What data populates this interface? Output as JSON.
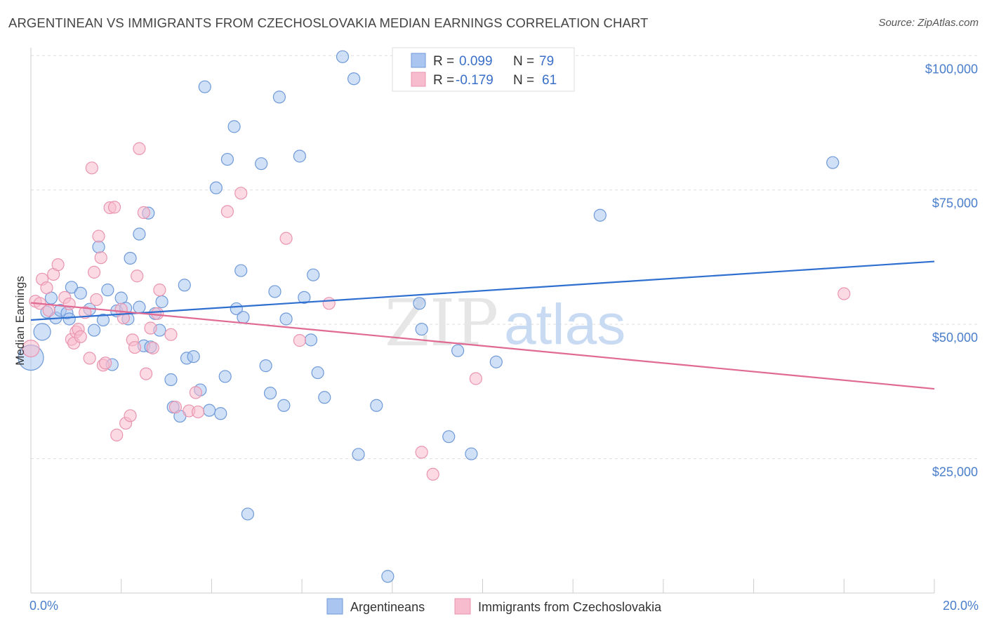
{
  "header": {
    "title": "ARGENTINEAN VS IMMIGRANTS FROM CZECHOSLOVAKIA MEDIAN EARNINGS CORRELATION CHART",
    "source": "Source: ZipAtlas.com"
  },
  "watermark": {
    "zip": "ZIP",
    "atlas": "atlas"
  },
  "legend_top": [
    {
      "r_label": "R =",
      "r_value": "0.099",
      "n_label": "N =",
      "n_value": "79"
    },
    {
      "r_label": "R =",
      "r_value": "-0.179",
      "n_label": "N =",
      "n_value": "61"
    }
  ],
  "legend_bottom": [
    "Argentineans",
    "Immigrants from Czechoslovakia"
  ],
  "colors": {
    "blue_fill": "#aac6f0",
    "blue_stroke": "#6f9ad8",
    "blue_line": "#2f6fd0",
    "pink_fill": "#f7bccd",
    "pink_stroke": "#e995b0",
    "pink_line": "#e06a94",
    "grid": "#dddddd",
    "tick_text": "#4a7ecb"
  },
  "chart_data": {
    "type": "scatter",
    "title": "ARGENTINEAN VS IMMIGRANTS FROM CZECHOSLOVAKIA MEDIAN EARNINGS CORRELATION CHART",
    "xlabel": "",
    "ylabel": "Median Earnings",
    "xlim": [
      0,
      20
    ],
    "ylim": [
      0,
      104000
    ],
    "x_tick_labels": [
      {
        "value": 0,
        "label": "0.0%"
      },
      {
        "value": 20,
        "label": "20.0%"
      }
    ],
    "y_tick_labels": [
      {
        "value": 25000,
        "label": "$25,000"
      },
      {
        "value": 50000,
        "label": "$50,000"
      },
      {
        "value": 75000,
        "label": "$75,000"
      },
      {
        "value": 100000,
        "label": "$100,000"
      }
    ],
    "grid": true,
    "series": [
      {
        "name": "Argentineans",
        "color": "#aac6f0",
        "trend": {
          "x": [
            0,
            20
          ],
          "y": [
            50800,
            61700
          ]
        },
        "points": [
          [
            0.0,
            43800,
            3
          ],
          [
            0.25,
            48600,
            2
          ],
          [
            0.35,
            52300,
            1
          ],
          [
            0.45,
            54900,
            1
          ],
          [
            0.55,
            51200,
            1
          ],
          [
            0.65,
            52600,
            1
          ],
          [
            0.8,
            52100,
            1
          ],
          [
            0.85,
            51000,
            1
          ],
          [
            0.9,
            56900,
            1
          ],
          [
            1.1,
            55800,
            1
          ],
          [
            1.3,
            52800,
            1
          ],
          [
            1.4,
            48900,
            1
          ],
          [
            1.5,
            64400,
            1
          ],
          [
            1.6,
            50800,
            1
          ],
          [
            1.7,
            56400,
            1
          ],
          [
            1.8,
            42500,
            1
          ],
          [
            1.9,
            52500,
            1
          ],
          [
            2.0,
            54900,
            1
          ],
          [
            2.1,
            53000,
            1
          ],
          [
            2.15,
            51000,
            1
          ],
          [
            2.2,
            62300,
            1
          ],
          [
            2.4,
            53200,
            1
          ],
          [
            2.4,
            66800,
            1
          ],
          [
            2.5,
            46000,
            1
          ],
          [
            2.6,
            70700,
            1
          ],
          [
            2.65,
            45800,
            1
          ],
          [
            2.75,
            52000,
            1
          ],
          [
            2.85,
            48900,
            1
          ],
          [
            2.9,
            54200,
            1
          ],
          [
            3.1,
            39700,
            1
          ],
          [
            3.15,
            34600,
            1
          ],
          [
            3.3,
            32900,
            1
          ],
          [
            3.4,
            57300,
            1
          ],
          [
            3.45,
            43700,
            1
          ],
          [
            3.6,
            44000,
            1
          ],
          [
            3.75,
            37800,
            1
          ],
          [
            3.85,
            94200,
            1
          ],
          [
            3.95,
            34000,
            1
          ],
          [
            4.1,
            75400,
            1
          ],
          [
            4.2,
            33400,
            1
          ],
          [
            4.3,
            40300,
            1
          ],
          [
            4.35,
            80700,
            1
          ],
          [
            4.5,
            86800,
            1
          ],
          [
            4.55,
            52900,
            1
          ],
          [
            4.65,
            60000,
            1
          ],
          [
            4.7,
            51300,
            1
          ],
          [
            4.8,
            14700,
            1
          ],
          [
            5.1,
            79900,
            1
          ],
          [
            5.2,
            42300,
            1
          ],
          [
            5.3,
            37200,
            1
          ],
          [
            5.4,
            56100,
            1
          ],
          [
            5.5,
            92300,
            1
          ],
          [
            5.6,
            34900,
            1
          ],
          [
            5.65,
            51000,
            1
          ],
          [
            5.95,
            81300,
            1
          ],
          [
            6.05,
            55000,
            1
          ],
          [
            6.2,
            47100,
            1
          ],
          [
            6.25,
            59200,
            1
          ],
          [
            6.35,
            41000,
            1
          ],
          [
            6.5,
            36400,
            1
          ],
          [
            6.9,
            99800,
            1
          ],
          [
            7.15,
            95700,
            1
          ],
          [
            7.25,
            25800,
            1
          ],
          [
            7.65,
            34900,
            1
          ],
          [
            7.9,
            3100,
            1
          ],
          [
            8.6,
            53900,
            1
          ],
          [
            8.65,
            49100,
            1
          ],
          [
            8.8,
            95400,
            1
          ],
          [
            9.25,
            29100,
            1
          ],
          [
            9.45,
            45100,
            1
          ],
          [
            9.75,
            25900,
            1
          ],
          [
            10.3,
            43000,
            1
          ],
          [
            12.6,
            70300,
            1
          ],
          [
            17.75,
            80100,
            1
          ]
        ]
      },
      {
        "name": "Immigrants from Czechoslovakia",
        "color": "#f7bccd",
        "trend": {
          "x": [
            0,
            20
          ],
          "y": [
            54000,
            38000
          ]
        },
        "points": [
          [
            0.0,
            45500,
            2
          ],
          [
            0.1,
            54300,
            1
          ],
          [
            0.2,
            53900,
            1
          ],
          [
            0.25,
            58400,
            1
          ],
          [
            0.35,
            56800,
            1
          ],
          [
            0.4,
            52600,
            1
          ],
          [
            0.5,
            59300,
            1
          ],
          [
            0.6,
            61100,
            1
          ],
          [
            0.75,
            55000,
            1
          ],
          [
            0.85,
            53800,
            1
          ],
          [
            0.9,
            47200,
            1
          ],
          [
            0.95,
            46500,
            1
          ],
          [
            1.0,
            48600,
            1
          ],
          [
            1.05,
            49100,
            1
          ],
          [
            1.1,
            47700,
            1
          ],
          [
            1.2,
            52200,
            1
          ],
          [
            1.3,
            43700,
            1
          ],
          [
            1.35,
            79100,
            1
          ],
          [
            1.4,
            59700,
            1
          ],
          [
            1.45,
            54600,
            1
          ],
          [
            1.5,
            66400,
            1
          ],
          [
            1.55,
            62400,
            1
          ],
          [
            1.6,
            42400,
            1
          ],
          [
            1.65,
            42800,
            1
          ],
          [
            1.75,
            71700,
            1
          ],
          [
            1.85,
            71800,
            1
          ],
          [
            1.9,
            29400,
            1
          ],
          [
            2.0,
            52800,
            1
          ],
          [
            2.05,
            51200,
            1
          ],
          [
            2.1,
            31600,
            1
          ],
          [
            2.2,
            33000,
            1
          ],
          [
            2.25,
            47100,
            1
          ],
          [
            2.3,
            45700,
            1
          ],
          [
            2.35,
            59000,
            1
          ],
          [
            2.4,
            82700,
            1
          ],
          [
            2.5,
            70800,
            1
          ],
          [
            2.55,
            40800,
            1
          ],
          [
            2.65,
            49300,
            1
          ],
          [
            2.7,
            45600,
            1
          ],
          [
            2.8,
            52000,
            1
          ],
          [
            2.85,
            56400,
            1
          ],
          [
            3.1,
            48100,
            1
          ],
          [
            3.2,
            34600,
            1
          ],
          [
            3.5,
            33900,
            1
          ],
          [
            3.65,
            37300,
            1
          ],
          [
            3.7,
            33700,
            1
          ],
          [
            4.35,
            71000,
            1
          ],
          [
            4.65,
            74400,
            1
          ],
          [
            5.65,
            66000,
            1
          ],
          [
            5.95,
            47000,
            1
          ],
          [
            6.6,
            53900,
            1
          ],
          [
            8.65,
            26200,
            1
          ],
          [
            8.9,
            22100,
            1
          ],
          [
            9.85,
            39900,
            1
          ],
          [
            18.0,
            55700,
            1
          ]
        ]
      }
    ]
  }
}
